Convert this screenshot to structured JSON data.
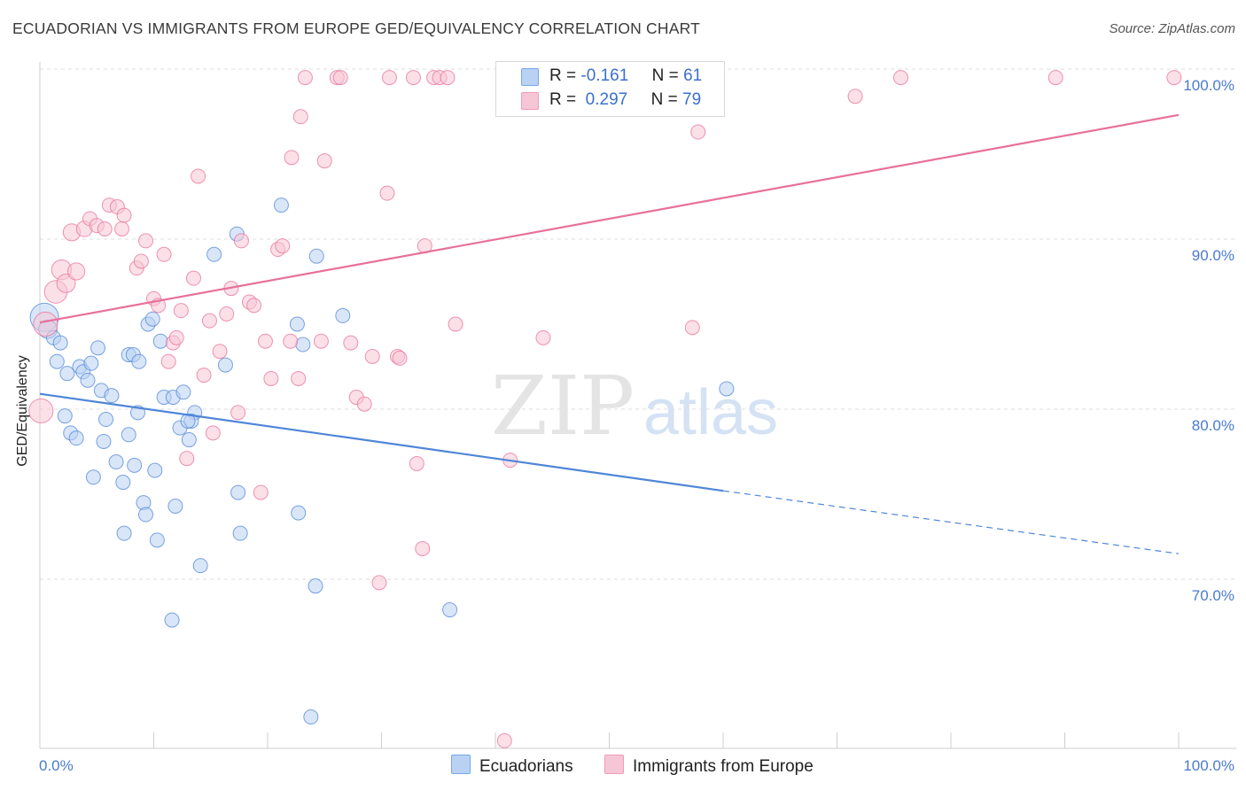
{
  "title": "ECUADORIAN VS IMMIGRANTS FROM EUROPE GED/EQUIVALENCY CORRELATION CHART",
  "source": "Source: ZipAtlas.com",
  "watermark": {
    "zip": "ZIP",
    "atlas": "atlas"
  },
  "legend": {
    "r_label": "R =",
    "n_label": "N =",
    "rows": [
      {
        "r": "-0.161",
        "n": "61",
        "color": "#a8c8f0"
      },
      {
        "r": "0.297",
        "n": "79",
        "color": "#f6b8cc"
      }
    ]
  },
  "bottom_legend": {
    "ecuadorians": "Ecuadorians",
    "europe": "Immigrants from Europe"
  },
  "chart_data": {
    "type": "scatter",
    "ylabel": "GED/Equivalency",
    "xlabel": "",
    "x_ticks": [
      "0.0%",
      "100.0%"
    ],
    "y_ticks": [
      "70.0%",
      "80.0%",
      "90.0%",
      "100.0%"
    ],
    "xlim": [
      0,
      100
    ],
    "ylim": [
      60.0,
      101.0
    ],
    "grid": true,
    "series": [
      {
        "name": "Ecuadorians",
        "color": "#4f86d8",
        "fill": "#b9d2f3",
        "trend": {
          "x0": 0,
          "y0": 80.9,
          "x1": 60,
          "y1": 75.2,
          "dash_to_x": 100,
          "dash_to_y": 71.5
        },
        "points": [
          [
            0.4,
            85.4,
            2
          ],
          [
            0.7,
            84.7,
            1.3
          ],
          [
            1.2,
            84.2,
            1
          ],
          [
            1.5,
            82.8,
            1
          ],
          [
            1.8,
            83.9,
            1
          ],
          [
            2.4,
            82.1,
            1
          ],
          [
            2.2,
            79.6,
            1
          ],
          [
            2.7,
            78.6,
            1
          ],
          [
            3.2,
            78.3,
            1
          ],
          [
            3.5,
            82.5,
            1
          ],
          [
            3.8,
            82.2,
            1
          ],
          [
            4.2,
            81.7,
            1
          ],
          [
            4.5,
            82.7,
            1
          ],
          [
            5.1,
            83.6,
            1
          ],
          [
            5.4,
            81.1,
            1
          ],
          [
            6.3,
            80.8,
            1
          ],
          [
            5.8,
            79.4,
            1
          ],
          [
            5.6,
            78.1,
            1
          ],
          [
            4.7,
            76.0,
            1
          ],
          [
            6.7,
            76.9,
            1
          ],
          [
            7.3,
            75.7,
            1
          ],
          [
            7.8,
            83.2,
            1
          ],
          [
            8.2,
            83.2,
            1
          ],
          [
            8.7,
            82.8,
            1
          ],
          [
            7.8,
            78.5,
            1
          ],
          [
            8.3,
            76.7,
            1
          ],
          [
            8.6,
            79.8,
            1
          ],
          [
            9.1,
            74.5,
            1
          ],
          [
            9.3,
            73.8,
            1
          ],
          [
            7.4,
            72.7,
            1
          ],
          [
            10.1,
            76.4,
            1
          ],
          [
            10.3,
            72.3,
            1
          ],
          [
            9.5,
            85.0,
            1
          ],
          [
            9.9,
            85.3,
            1
          ],
          [
            10.6,
            84.0,
            1
          ],
          [
            10.9,
            80.7,
            1
          ],
          [
            11.7,
            80.7,
            1
          ],
          [
            12.3,
            78.9,
            1
          ],
          [
            11.9,
            74.3,
            1
          ],
          [
            13.1,
            78.2,
            1
          ],
          [
            12.6,
            81.0,
            1
          ],
          [
            13.6,
            79.8,
            1
          ],
          [
            14.1,
            70.8,
            1
          ],
          [
            13.3,
            79.3,
            1
          ],
          [
            11.6,
            67.6,
            1
          ],
          [
            15.3,
            89.1,
            1
          ],
          [
            17.3,
            90.3,
            1
          ],
          [
            16.3,
            82.6,
            1
          ],
          [
            17.4,
            75.1,
            1
          ],
          [
            17.6,
            72.7,
            1
          ],
          [
            21.2,
            92.0,
            1
          ],
          [
            22.6,
            85.0,
            1
          ],
          [
            22.7,
            73.9,
            1
          ],
          [
            23.1,
            83.8,
            1
          ],
          [
            24.3,
            89.0,
            1
          ],
          [
            26.6,
            85.5,
            1
          ],
          [
            24.2,
            69.6,
            1
          ],
          [
            36.0,
            68.2,
            1
          ],
          [
            60.3,
            81.2,
            1
          ],
          [
            23.8,
            61.9,
            1
          ],
          [
            13.0,
            79.3,
            1
          ]
        ]
      },
      {
        "name": "Immigrants from Europe",
        "color": "#e8709a",
        "fill": "#f7c6d6",
        "trend": {
          "x0": 0,
          "y0": 85.1,
          "x1": 100,
          "y1": 97.3
        },
        "points": [
          [
            0.5,
            85.0,
            1.7
          ],
          [
            1.4,
            86.9,
            1.6
          ],
          [
            1.9,
            88.2,
            1.4
          ],
          [
            2.3,
            87.4,
            1.3
          ],
          [
            3.2,
            88.1,
            1.2
          ],
          [
            2.8,
            90.4,
            1.2
          ],
          [
            3.9,
            90.6,
            1.1
          ],
          [
            4.4,
            91.2,
            1
          ],
          [
            5.0,
            90.8,
            1
          ],
          [
            5.7,
            90.6,
            1
          ],
          [
            6.1,
            92.0,
            1
          ],
          [
            6.8,
            91.9,
            1
          ],
          [
            7.4,
            91.4,
            1
          ],
          [
            7.2,
            90.6,
            1
          ],
          [
            8.5,
            88.3,
            1
          ],
          [
            8.9,
            88.7,
            1
          ],
          [
            9.3,
            89.9,
            1
          ],
          [
            10.0,
            86.5,
            1
          ],
          [
            10.4,
            86.1,
            1
          ],
          [
            10.9,
            89.1,
            1
          ],
          [
            11.7,
            83.9,
            1
          ],
          [
            12.0,
            84.2,
            1
          ],
          [
            12.4,
            85.8,
            1
          ],
          [
            11.3,
            82.8,
            1
          ],
          [
            12.9,
            77.1,
            1
          ],
          [
            13.5,
            87.7,
            1
          ],
          [
            13.9,
            93.7,
            1
          ],
          [
            14.4,
            82.0,
            1
          ],
          [
            14.9,
            85.2,
            1
          ],
          [
            15.2,
            78.6,
            1
          ],
          [
            15.8,
            83.4,
            1
          ],
          [
            16.4,
            85.6,
            1
          ],
          [
            16.8,
            87.1,
            1
          ],
          [
            17.4,
            79.8,
            1
          ],
          [
            17.7,
            89.9,
            1
          ],
          [
            18.4,
            86.3,
            1
          ],
          [
            18.8,
            86.1,
            1
          ],
          [
            19.4,
            75.1,
            1
          ],
          [
            19.8,
            84.0,
            1
          ],
          [
            20.3,
            81.8,
            1
          ],
          [
            20.9,
            89.4,
            1
          ],
          [
            21.3,
            89.6,
            1
          ],
          [
            22.0,
            84.0,
            1
          ],
          [
            22.1,
            94.8,
            1
          ],
          [
            22.7,
            81.8,
            1
          ],
          [
            22.9,
            97.2,
            1
          ],
          [
            23.3,
            99.5,
            1
          ],
          [
            24.7,
            84.0,
            1
          ],
          [
            25.0,
            94.6,
            1
          ],
          [
            26.1,
            99.5,
            1
          ],
          [
            26.4,
            99.5,
            1
          ],
          [
            27.3,
            83.9,
            1
          ],
          [
            27.8,
            80.7,
            1
          ],
          [
            28.5,
            80.3,
            1
          ],
          [
            29.2,
            83.1,
            1
          ],
          [
            29.8,
            69.8,
            1
          ],
          [
            30.5,
            92.7,
            1
          ],
          [
            30.7,
            99.5,
            1
          ],
          [
            31.4,
            83.1,
            1
          ],
          [
            31.6,
            83.0,
            1
          ],
          [
            32.8,
            99.5,
            1
          ],
          [
            33.1,
            76.8,
            1
          ],
          [
            33.6,
            71.8,
            1
          ],
          [
            33.8,
            89.6,
            1
          ],
          [
            34.6,
            99.5,
            1
          ],
          [
            35.1,
            99.5,
            1
          ],
          [
            35.8,
            99.5,
            1
          ],
          [
            36.5,
            85.0,
            1
          ],
          [
            40.8,
            60.5,
            1
          ],
          [
            41.3,
            77.0,
            1
          ],
          [
            44.2,
            84.2,
            1
          ],
          [
            47.7,
            99.5,
            1
          ],
          [
            57.3,
            84.8,
            1
          ],
          [
            57.8,
            96.3,
            1
          ],
          [
            71.6,
            98.4,
            1
          ],
          [
            75.6,
            99.5,
            1
          ],
          [
            89.2,
            99.5,
            1
          ],
          [
            99.6,
            99.5,
            1
          ],
          [
            0.1,
            79.9,
            1.7
          ]
        ]
      }
    ]
  }
}
